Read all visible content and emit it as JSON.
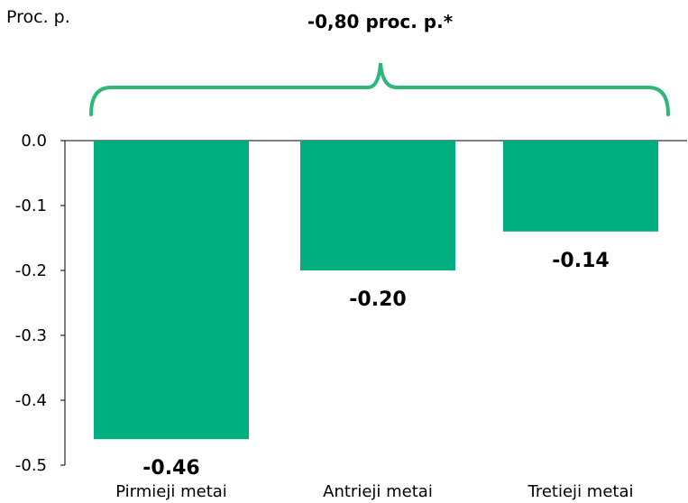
{
  "chart_data": {
    "type": "bar",
    "unit_label": "Proc. p.",
    "categories": [
      "Pirmieji metai",
      "Antrieji metai",
      "Tretieji metai"
    ],
    "values": [
      -0.46,
      -0.2,
      -0.14
    ],
    "value_labels": [
      "-0.46",
      "-0.20",
      "-0.14"
    ],
    "ylim": [
      -0.5,
      0.0
    ],
    "yticks": [
      0.0,
      -0.1,
      -0.2,
      -0.3,
      -0.4,
      -0.5
    ],
    "ytick_labels": [
      "0.0",
      "-0.1",
      "-0.2",
      "-0.3",
      "-0.4",
      "-0.5"
    ],
    "total_annotation": "-0,80 proc. p.*",
    "bar_color": "#00AE80",
    "brace_color": "#2DB87A",
    "grid": false
  }
}
